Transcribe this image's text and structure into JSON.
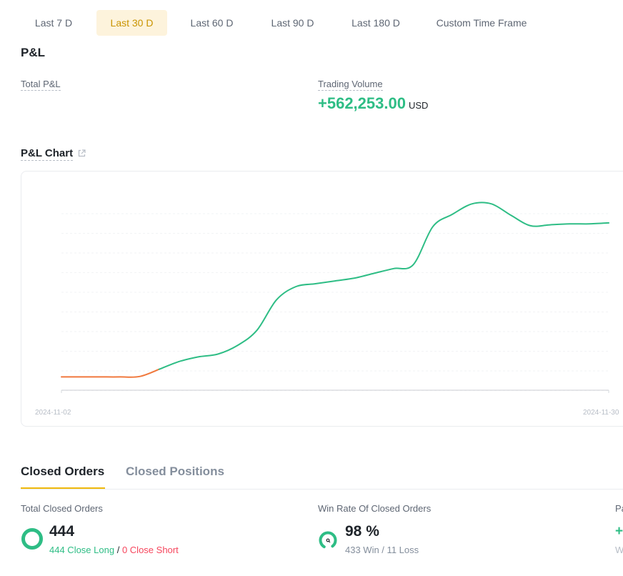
{
  "time_tabs": [
    {
      "label": "Last 7 D",
      "active": false
    },
    {
      "label": "Last 30 D",
      "active": true
    },
    {
      "label": "Last 60 D",
      "active": false
    },
    {
      "label": "Last 90 D",
      "active": false
    },
    {
      "label": "Last 180 D",
      "active": false
    },
    {
      "label": "Custom Time Frame",
      "active": false
    }
  ],
  "pnl": {
    "title": "P&L",
    "total_label": "Total P&L",
    "volume_label": "Trading Volume",
    "volume_value": "+562,253.00",
    "volume_unit": "USD"
  },
  "chart": {
    "title": "P&L Chart"
  },
  "chart_data": {
    "type": "line",
    "title": "P&L Chart",
    "x_start_label": "2024-11-02",
    "x_end_label": "2024-11-30",
    "x": [
      "2024-11-02",
      "2024-11-03",
      "2024-11-04",
      "2024-11-05",
      "2024-11-06",
      "2024-11-07",
      "2024-11-08",
      "2024-11-09",
      "2024-11-10",
      "2024-11-11",
      "2024-11-12",
      "2024-11-13",
      "2024-11-14",
      "2024-11-15",
      "2024-11-16",
      "2024-11-17",
      "2024-11-18",
      "2024-11-19",
      "2024-11-20",
      "2024-11-21",
      "2024-11-22",
      "2024-11-23",
      "2024-11-24",
      "2024-11-25",
      "2024-11-26",
      "2024-11-27",
      "2024-11-28",
      "2024-11-29",
      "2024-11-30"
    ],
    "values": [
      -1,
      -1,
      -1,
      -1,
      -0.8,
      3,
      7,
      9.5,
      11,
      15.5,
      23.5,
      39.5,
      46.5,
      48,
      49.5,
      51,
      53.5,
      56,
      58,
      78,
      84.5,
      90,
      90,
      84,
      78.5,
      79,
      79.5,
      79.5,
      80
    ],
    "negative_color": "#f0783c",
    "positive_color": "#2ebd85",
    "grid": true,
    "ylim": [
      -8,
      92
    ]
  },
  "orders": {
    "tabs": [
      {
        "label": "Closed Orders",
        "active": true
      },
      {
        "label": "Closed Positions",
        "active": false
      }
    ],
    "total_closed_label": "Total Closed Orders",
    "total_closed_value": "444",
    "close_long": "444 Close Long",
    "separator": "/",
    "close_short": "0 Close Short",
    "win_rate_label": "Win Rate Of Closed Orders",
    "win_rate_value": "98 %",
    "win_loss": "433 Win / 11 Loss",
    "win_rate_fraction": 0.975,
    "third_label_clip": "Pa",
    "third_value_clip": "+",
    "third_sub_clip": "W"
  },
  "colors": {
    "accent": "#f0b90b",
    "green": "#2ebd85",
    "red": "#f6465d",
    "gray_ring": "#d9d9d9"
  }
}
